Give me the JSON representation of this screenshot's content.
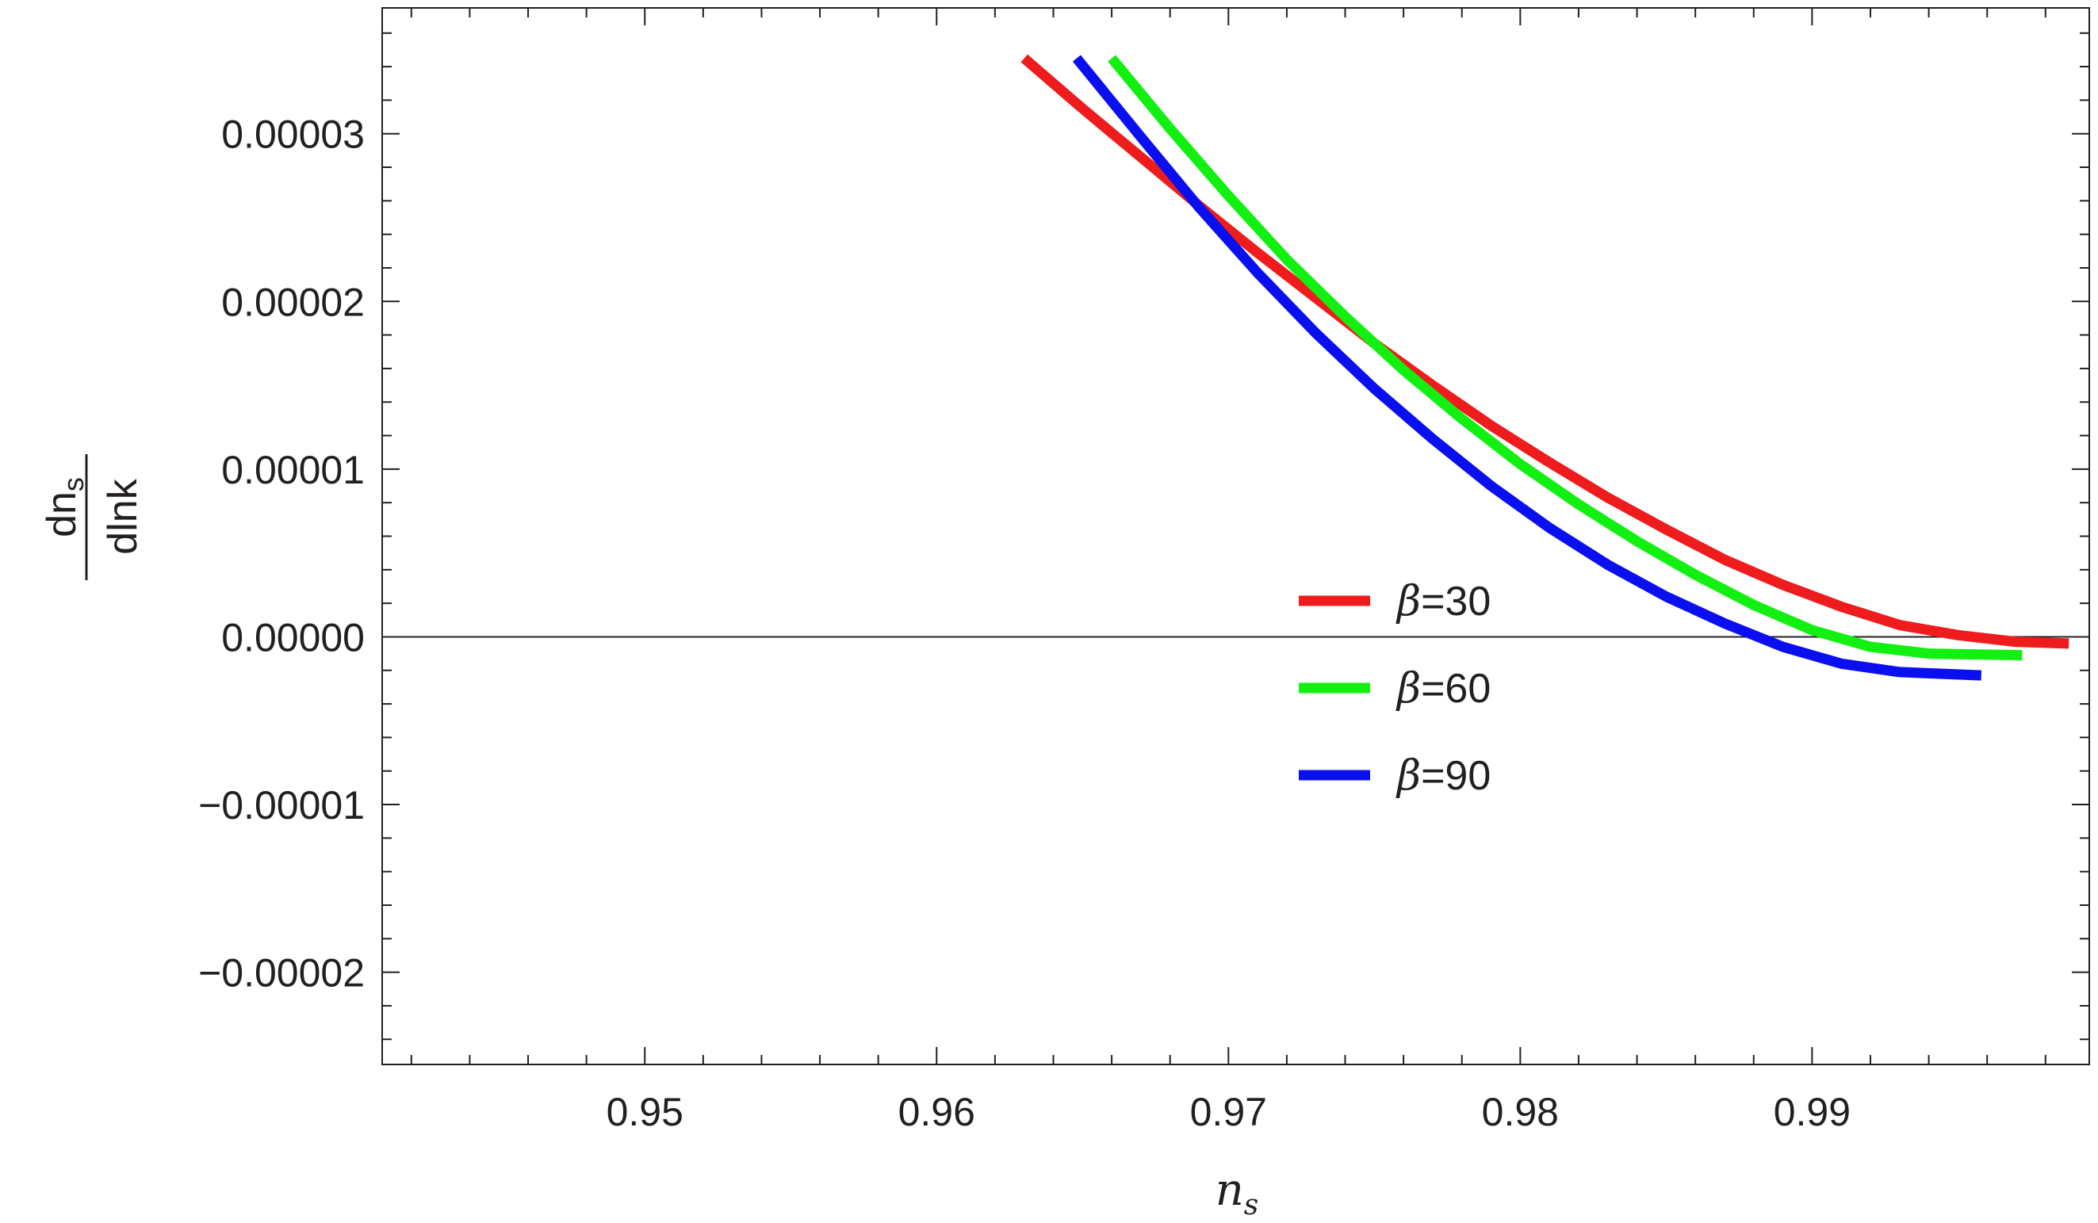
{
  "chart_data": {
    "type": "line",
    "xlabel": {
      "main": "n",
      "sub": "s"
    },
    "ylabel": {
      "numerator_main": "dn",
      "numerator_sub": "s",
      "denominator": "dlnk"
    },
    "xlim": [
      0.941,
      0.9995
    ],
    "ylim": [
      -2.55e-05,
      3.75e-05
    ],
    "xticks": [
      0.95,
      0.96,
      0.97,
      0.98,
      0.99
    ],
    "xtick_labels": [
      "0.95",
      "0.96",
      "0.97",
      "0.98",
      "0.99"
    ],
    "yticks": [
      3e-05,
      2e-05,
      1e-05,
      0.0,
      -1e-05,
      -2e-05
    ],
    "ytick_labels": [
      "0.00003",
      "0.00002",
      "0.00001",
      "0.00000",
      "−0.00001",
      "−0.00002"
    ],
    "x_minor_step": 0.002,
    "y_minor_step": 2e-06,
    "zero_line": true,
    "grid": false,
    "legend_position": "center-right",
    "series": [
      {
        "name": "β=30",
        "symbol": "β",
        "value_label": "=30",
        "color": "#ee1c1c",
        "x": [
          0.963,
          0.965,
          0.967,
          0.969,
          0.971,
          0.973,
          0.975,
          0.977,
          0.979,
          0.981,
          0.983,
          0.985,
          0.987,
          0.989,
          0.991,
          0.993,
          0.995,
          0.997,
          0.9988
        ],
        "y": [
          3.45e-05,
          3.15e-05,
          2.86e-05,
          2.57e-05,
          2.29e-05,
          2.02e-05,
          1.75e-05,
          1.5e-05,
          1.26e-05,
          1.04e-05,
          8.3e-06,
          6.4e-06,
          4.6e-06,
          3.1e-06,
          1.8e-06,
          7e-07,
          1e-07,
          -3e-07,
          -4e-07
        ]
      },
      {
        "name": "β=60",
        "symbol": "β",
        "value_label": "=60",
        "color": "#12f012",
        "x": [
          0.966,
          0.968,
          0.97,
          0.972,
          0.974,
          0.976,
          0.978,
          0.98,
          0.982,
          0.984,
          0.986,
          0.988,
          0.99,
          0.992,
          0.994,
          0.9972
        ],
        "y": [
          3.45e-05,
          3.03e-05,
          2.63e-05,
          2.25e-05,
          1.91e-05,
          1.59e-05,
          1.3e-05,
          1.03e-05,
          7.9e-06,
          5.7e-06,
          3.7e-06,
          1.9e-06,
          4e-07,
          -6e-07,
          -1e-06,
          -1.1e-06
        ]
      },
      {
        "name": "β=90",
        "symbol": "β",
        "value_label": "=90",
        "color": "#0a0ff0",
        "x": [
          0.9648,
          0.967,
          0.969,
          0.971,
          0.973,
          0.975,
          0.977,
          0.979,
          0.981,
          0.983,
          0.985,
          0.987,
          0.989,
          0.991,
          0.993,
          0.9958
        ],
        "y": [
          3.45e-05,
          2.98e-05,
          2.56e-05,
          2.17e-05,
          1.81e-05,
          1.48e-05,
          1.18e-05,
          9e-06,
          6.5e-06,
          4.3e-06,
          2.4e-06,
          8e-07,
          -6e-07,
          -1.6e-06,
          -2.1e-06,
          -2.3e-06
        ]
      }
    ]
  }
}
